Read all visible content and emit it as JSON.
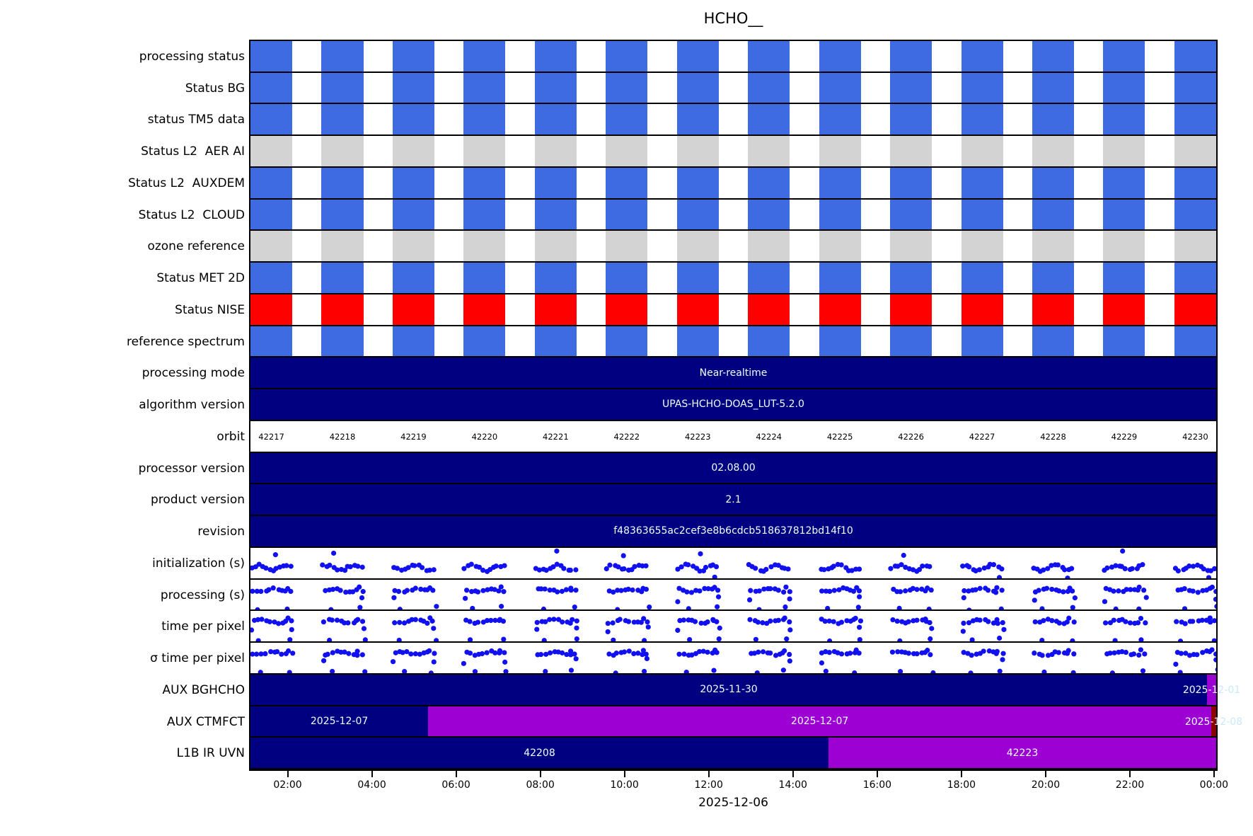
{
  "title": "HCHO__",
  "axis": {
    "date_label": "2025-12-06",
    "ticks": [
      {
        "label": "02:00",
        "f": 0.0385
      },
      {
        "label": "04:00",
        "f": 0.1257
      },
      {
        "label": "06:00",
        "f": 0.2129
      },
      {
        "label": "08:00",
        "f": 0.3001
      },
      {
        "label": "10:00",
        "f": 0.3873
      },
      {
        "label": "12:00",
        "f": 0.4745
      },
      {
        "label": "14:00",
        "f": 0.5617
      },
      {
        "label": "16:00",
        "f": 0.649
      },
      {
        "label": "18:00",
        "f": 0.7362
      },
      {
        "label": "20:00",
        "f": 0.8234
      },
      {
        "label": "22:00",
        "f": 0.9106
      },
      {
        "label": "00:00",
        "f": 0.9977
      }
    ]
  },
  "palette": {
    "blue": "#3E6BE1",
    "gray": "#D3D3D3",
    "red": "#FF0000",
    "navy": "#000080",
    "purple": "#9C00D2",
    "darkred": "#8B0000",
    "dot": "#1010F0",
    "bar_text": "#EFFFFF",
    "overflow_text": "#CBE9F6"
  },
  "orbits": [
    "42217",
    "42218",
    "42219",
    "42220",
    "42221",
    "42222",
    "42223",
    "42224",
    "42225",
    "42226",
    "42227",
    "42228",
    "42229",
    "42230"
  ],
  "bars_layout": {
    "count": 14,
    "spacing_f": 0.07359,
    "width_f": 0.0433
  },
  "rows": [
    {
      "label": "processing status",
      "type": "bars",
      "color_key": "blue"
    },
    {
      "label": "Status BG",
      "type": "bars",
      "color_key": "blue"
    },
    {
      "label": "status TM5 data",
      "type": "bars",
      "color_key": "blue"
    },
    {
      "label": "Status L2  AER AI",
      "type": "bars",
      "color_key": "gray"
    },
    {
      "label": "Status L2  AUXDEM",
      "type": "bars",
      "color_key": "blue"
    },
    {
      "label": "Status L2  CLOUD",
      "type": "bars",
      "color_key": "blue"
    },
    {
      "label": "ozone reference",
      "type": "bars",
      "color_key": "gray"
    },
    {
      "label": "Status MET 2D",
      "type": "bars",
      "color_key": "blue"
    },
    {
      "label": "Status NISE",
      "type": "bars",
      "color_key": "red"
    },
    {
      "label": "reference spectrum",
      "type": "bars",
      "color_key": "blue"
    },
    {
      "label": "processing mode",
      "type": "segments",
      "segments": [
        {
          "from": 0,
          "to": 1,
          "color_key": "navy",
          "text": "Near-realtime"
        }
      ]
    },
    {
      "label": "algorithm version",
      "type": "segments",
      "segments": [
        {
          "from": 0,
          "to": 1,
          "color_key": "navy",
          "text": "UPAS-HCHO-DOAS_LUT-5.2.0"
        }
      ]
    },
    {
      "label": "orbit",
      "type": "orbits"
    },
    {
      "label": "processor version",
      "type": "segments",
      "segments": [
        {
          "from": 0,
          "to": 1,
          "color_key": "navy",
          "text": "02.08.00"
        }
      ]
    },
    {
      "label": "product version",
      "type": "segments",
      "segments": [
        {
          "from": 0,
          "to": 1,
          "color_key": "navy",
          "text": "2.1"
        }
      ]
    },
    {
      "label": "revision",
      "type": "segments",
      "segments": [
        {
          "from": 0,
          "to": 1,
          "color_key": "navy",
          "text": "f48363655ac2cef3e8b6cdcb518637812bd14f10"
        }
      ]
    },
    {
      "label": "initialization (s)",
      "type": "scatter",
      "pattern": "lower",
      "seed": 11
    },
    {
      "label": "processing (s)",
      "type": "scatter",
      "pattern": "upper",
      "seed": 23
    },
    {
      "label": "time per pixel",
      "type": "scatter",
      "pattern": "upper",
      "seed": 37
    },
    {
      "label": "σ time per pixel",
      "type": "scatter",
      "pattern": "upper",
      "seed": 51
    },
    {
      "label": "AUX BGHCHO",
      "type": "segments",
      "segments": [
        {
          "from": 0,
          "to": 0.9905,
          "color_key": "navy",
          "text": "2025-11-30"
        },
        {
          "from": 0.9905,
          "to": 1,
          "color_key": "purple",
          "text": "2025-12-01",
          "overflow": true
        }
      ]
    },
    {
      "label": "AUX CTMFCT",
      "type": "segments",
      "segments": [
        {
          "from": 0,
          "to": 0.184,
          "color_key": "navy",
          "text": "2025-12-07"
        },
        {
          "from": 0.184,
          "to": 0.9949,
          "color_key": "purple",
          "text": "2025-12-07"
        },
        {
          "from": 0.9949,
          "to": 1,
          "color_key": "darkred",
          "text": "2025-12-08",
          "overflow": true
        }
      ]
    },
    {
      "label": "L1B IR UVN",
      "type": "segments",
      "segments": [
        {
          "from": 0,
          "to": 0.5985,
          "color_key": "navy",
          "text": "42208"
        },
        {
          "from": 0.5985,
          "to": 1,
          "color_key": "purple",
          "text": "42223"
        }
      ]
    }
  ],
  "chart_data": {
    "type": "heatmap",
    "title": "HCHO__",
    "x_date": "2025-12-06",
    "x_ticks": [
      "02:00",
      "04:00",
      "06:00",
      "08:00",
      "10:00",
      "12:00",
      "14:00",
      "16:00",
      "18:00",
      "20:00",
      "22:00",
      "00:00"
    ],
    "orbits": [
      42217,
      42218,
      42219,
      42220,
      42221,
      42222,
      42223,
      42224,
      42225,
      42226,
      42227,
      42228,
      42229,
      42230
    ],
    "status_rows": [
      {
        "name": "processing status",
        "all_orbits": "blue"
      },
      {
        "name": "Status BG",
        "all_orbits": "blue"
      },
      {
        "name": "status TM5 data",
        "all_orbits": "blue"
      },
      {
        "name": "Status L2  AER AI",
        "all_orbits": "gray"
      },
      {
        "name": "Status L2  AUXDEM",
        "all_orbits": "blue"
      },
      {
        "name": "Status L2  CLOUD",
        "all_orbits": "blue"
      },
      {
        "name": "ozone reference",
        "all_orbits": "gray"
      },
      {
        "name": "Status MET 2D",
        "all_orbits": "blue"
      },
      {
        "name": "Status NISE",
        "all_orbits": "red"
      },
      {
        "name": "reference spectrum",
        "all_orbits": "blue"
      }
    ],
    "text_rows": [
      {
        "name": "processing mode",
        "value": "Near-realtime"
      },
      {
        "name": "algorithm version",
        "value": "UPAS-HCHO-DOAS_LUT-5.2.0"
      },
      {
        "name": "processor version",
        "value": "02.08.00"
      },
      {
        "name": "product version",
        "value": "2.1"
      },
      {
        "name": "revision",
        "value": "f48363655ac2cef3e8b6cdcb518637812bd14f10"
      }
    ],
    "scatter_rows": [
      {
        "name": "initialization (s)",
        "note": "unlabeled y-axis; one dot cluster per orbit, band in lower half with occasional high outliers"
      },
      {
        "name": "processing (s)",
        "note": "unlabeled y-axis; one dot cluster per orbit, band in upper half with low outliers"
      },
      {
        "name": "time per pixel",
        "note": "unlabeled y-axis; one dot cluster per orbit, band in upper half with low outliers"
      },
      {
        "name": "σ time per pixel",
        "note": "unlabeled y-axis; one dot cluster per orbit, band in upper half with low outliers"
      }
    ],
    "aux_rows": [
      {
        "name": "AUX BGHCHO",
        "segments": [
          {
            "value": "2025-11-30",
            "until": "23:45"
          },
          {
            "value": "2025-12-01",
            "until": "00:00"
          }
        ]
      },
      {
        "name": "AUX CTMFCT",
        "segments": [
          {
            "value": "2025-12-07",
            "until": "05:20"
          },
          {
            "value": "2025-12-07",
            "until": "23:52"
          },
          {
            "value": "2025-12-08",
            "until": "00:00"
          }
        ]
      },
      {
        "name": "L1B IR UVN",
        "segments": [
          {
            "value": "42208",
            "until": "14:50"
          },
          {
            "value": "42223",
            "until": "00:00"
          }
        ]
      }
    ]
  }
}
